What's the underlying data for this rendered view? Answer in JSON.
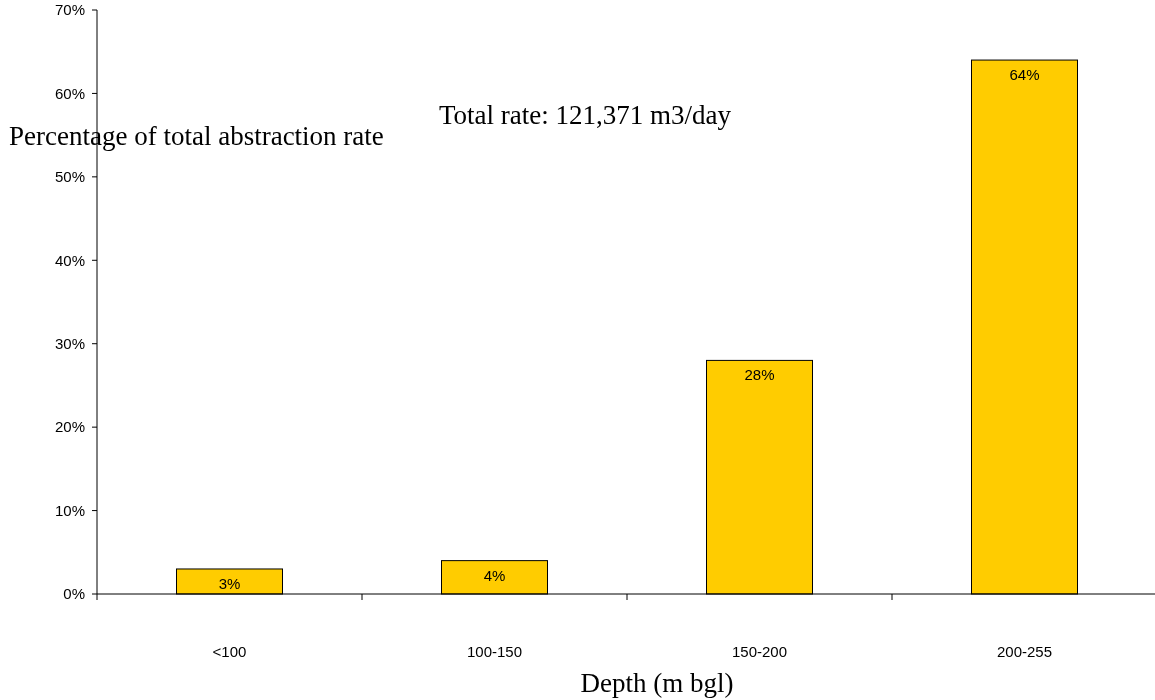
{
  "chart_data": {
    "type": "bar",
    "xlabel": "Depth (m bgl)",
    "ylabel": "Percentage of total abstraction rate",
    "categories": [
      "<100",
      "100-150",
      "150-200",
      "200-255"
    ],
    "values": [
      3,
      4,
      28,
      64
    ],
    "color": "#ffcc00",
    "value_labels": [
      "3%",
      "4%",
      "28%",
      "64%"
    ],
    "ylim": [
      0,
      70
    ],
    "yticks": [
      {
        "value": 0,
        "label": "0%"
      },
      {
        "value": 10,
        "label": "10%"
      },
      {
        "value": 20,
        "label": "20%"
      },
      {
        "value": 30,
        "label": "30%"
      },
      {
        "value": 40,
        "label": "40%"
      },
      {
        "value": 50,
        "label": "50%"
      },
      {
        "value": 60,
        "label": "60%"
      },
      {
        "value": 70,
        "label": "70%"
      }
    ],
    "annotations": [
      "Total rate: 121,371 m3/day"
    ],
    "grid": false
  }
}
